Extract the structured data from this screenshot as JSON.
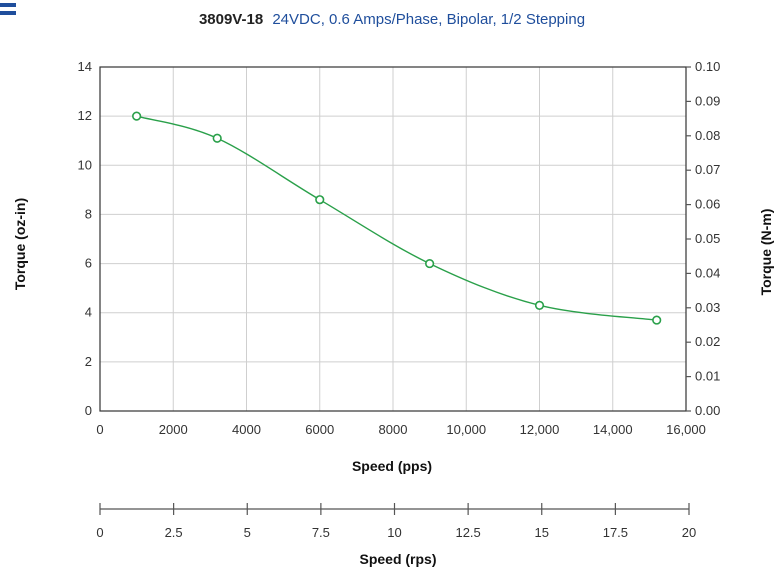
{
  "chart_data": {
    "type": "line",
    "title": {
      "model": "3809V-18",
      "conditions": "24VDC, 0.6 Amps/Phase, Bipolar, 1/2 Stepping"
    },
    "xlabel": "Speed (pps)",
    "ylabel": "Torque (oz-in)",
    "y2label": "Torque (N-m)",
    "x2label": "Speed (rps)",
    "xlim": [
      0,
      16000
    ],
    "ylim": [
      0,
      14
    ],
    "y2lim": [
      0,
      0.1
    ],
    "x2lim": [
      0,
      20
    ],
    "x_ticks": [
      "0",
      "2000",
      "4000",
      "6000",
      "8000",
      "10,000",
      "12,000",
      "14,000",
      "16,000"
    ],
    "y_ticks": [
      "0",
      "2",
      "4",
      "6",
      "8",
      "10",
      "12",
      "14"
    ],
    "y2_ticks": [
      "0.00",
      "0.01",
      "0.02",
      "0.03",
      "0.04",
      "0.05",
      "0.06",
      "0.07",
      "0.08",
      "0.09",
      "0.10"
    ],
    "x2_ticks": [
      "0",
      "2.5",
      "5",
      "7.5",
      "10",
      "12.5",
      "15",
      "17.5",
      "20"
    ],
    "grid": true,
    "series": [
      {
        "points": [
          {
            "x": 1000,
            "y": 12.0
          },
          {
            "x": 3200,
            "y": 11.1
          },
          {
            "x": 6000,
            "y": 8.6
          },
          {
            "x": 9000,
            "y": 6.0
          },
          {
            "x": 12000,
            "y": 4.3
          },
          {
            "x": 15200,
            "y": 3.7
          }
        ],
        "color": "#2aa04a"
      }
    ]
  }
}
